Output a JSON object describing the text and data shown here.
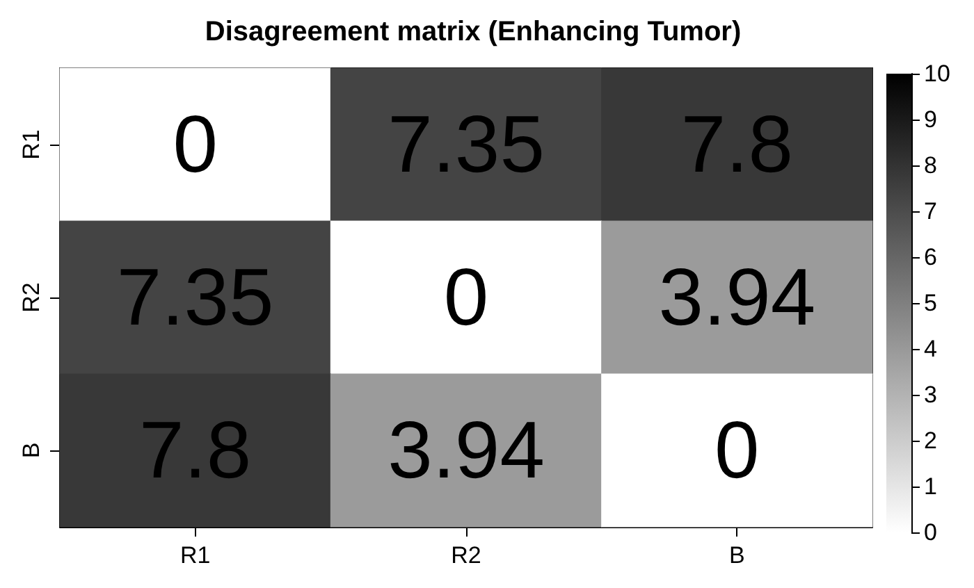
{
  "chart_data": {
    "type": "heatmap",
    "title": "Disagreement matrix (Enhancing Tumor)",
    "categories": [
      "R1",
      "R2",
      "B"
    ],
    "y_categories": [
      "R1",
      "R2",
      "B"
    ],
    "cells": [
      [
        0,
        7.35,
        7.8
      ],
      [
        7.35,
        0,
        3.94
      ],
      [
        7.8,
        3.94,
        0
      ]
    ],
    "clim": [
      0,
      10
    ],
    "cticks": [
      0,
      1,
      2,
      3,
      4,
      5,
      6,
      7,
      8,
      9,
      10
    ],
    "data_labels": true
  }
}
